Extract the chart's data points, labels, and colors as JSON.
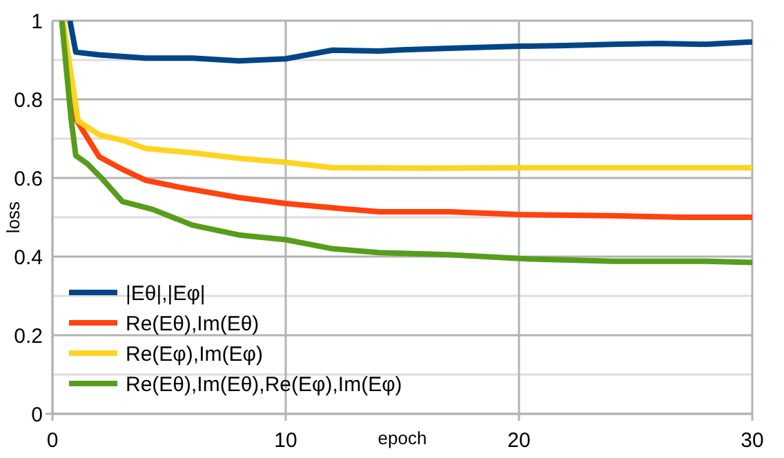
{
  "chart_data": {
    "type": "line",
    "xlabel": "epoch",
    "ylabel": "loss",
    "xlim": [
      0,
      30
    ],
    "xticks": [
      0,
      10,
      20,
      30
    ],
    "ylim": [
      0,
      1
    ],
    "yticks": [
      0,
      {
        "value": 0.1,
        "label": null
      },
      0.2,
      {
        "value": 0.3,
        "label": null
      },
      0.4,
      {
        "value": 0.5,
        "label": null
      },
      0.6,
      {
        "value": 0.7,
        "label": null
      },
      0.8,
      {
        "value": 0.9,
        "label": null
      },
      1
    ],
    "grid": true,
    "legend": "bottom left",
    "line_style": "solid",
    "series": [
      {
        "name": "|Eθ|,|Eφ|",
        "color": "#004586",
        "x": [
          0.75,
          1,
          2,
          4,
          6,
          8,
          10,
          12,
          14,
          15,
          17,
          20,
          22,
          24,
          26,
          28,
          30
        ],
        "values": [
          1,
          0.92,
          0.913,
          0.905,
          0.905,
          0.898,
          0.903,
          0.925,
          0.923,
          0.926,
          0.93,
          0.935,
          0.937,
          0.94,
          0.942,
          0.94,
          0.946
        ]
      },
      {
        "name": "Re(Eθ),Im(Eθ)",
        "color": "#ff420e",
        "x": [
          0.45,
          1,
          2,
          3,
          4,
          5.4,
          8,
          10,
          12,
          14,
          17,
          20,
          24,
          27,
          30
        ],
        "values": [
          1,
          0.75,
          0.654,
          0.622,
          0.594,
          0.577,
          0.55,
          0.535,
          0.524,
          0.514,
          0.514,
          0.507,
          0.504,
          0.5,
          0.5
        ]
      },
      {
        "name": "Re(Eφ),Im(Eφ)",
        "color": "#ffd320",
        "x": [
          0.45,
          1.1,
          2,
          3,
          4,
          6,
          8,
          10,
          12,
          16,
          20,
          25,
          30
        ],
        "values": [
          1,
          0.745,
          0.71,
          0.696,
          0.675,
          0.664,
          0.65,
          0.64,
          0.626,
          0.625,
          0.626,
          0.626,
          0.626
        ]
      },
      {
        "name": "Re(Eθ),Im(Eθ),Re(Eφ),Im(Eφ)",
        "color": "#579d1c",
        "x": [
          0.4,
          0.8,
          1,
          1.5,
          2.1,
          3,
          4.3,
          6,
          8,
          10,
          12,
          14,
          17,
          20,
          24,
          28,
          30
        ],
        "values": [
          1,
          0.75,
          0.657,
          0.636,
          0.6,
          0.54,
          0.52,
          0.48,
          0.455,
          0.443,
          0.42,
          0.41,
          0.405,
          0.395,
          0.388,
          0.388,
          0.385
        ]
      }
    ]
  }
}
